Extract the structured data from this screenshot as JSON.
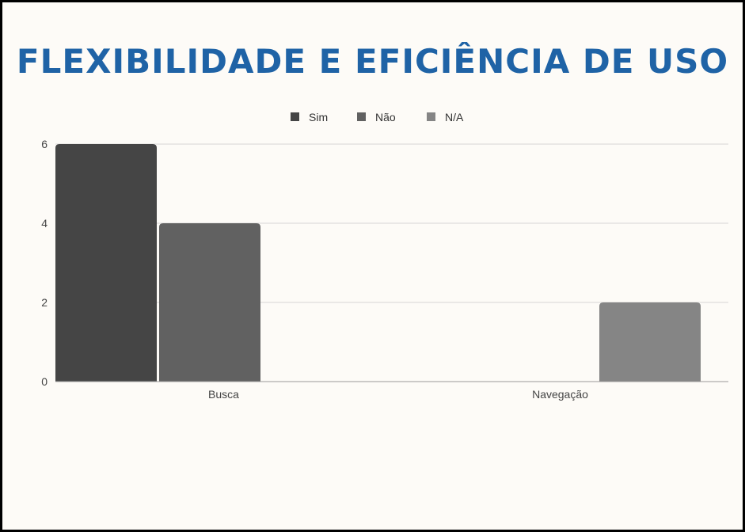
{
  "chart_data": {
    "type": "bar",
    "title": "FLEXIBILIDADE E EFICIÊNCIA DE USO",
    "categories": [
      "Busca",
      "Navegação"
    ],
    "series": [
      {
        "name": "Sim",
        "values": [
          6,
          0
        ],
        "color": "#454545"
      },
      {
        "name": "Não",
        "values": [
          4,
          0
        ],
        "color": "#616161"
      },
      {
        "name": "N/A",
        "values": [
          0,
          2
        ],
        "color": "#858585"
      }
    ],
    "yticks": [
      0,
      2,
      4,
      6
    ],
    "ylim": [
      0,
      6
    ],
    "xlabel": "",
    "ylabel": "",
    "grid": true,
    "legend_position": "top"
  },
  "colors": {
    "title": "#1f63a6",
    "grid": "#d6d6d6",
    "axis": "#9a9a9a"
  }
}
